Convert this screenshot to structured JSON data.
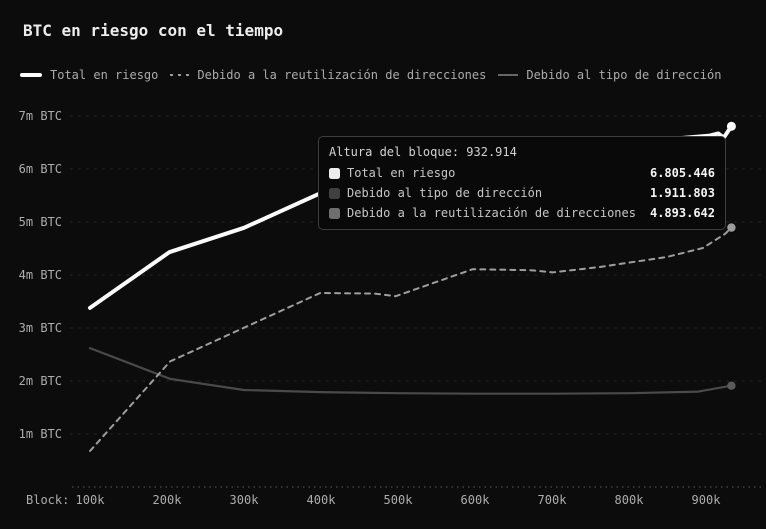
{
  "title": "BTC en riesgo con el tiempo",
  "legend": {
    "items": [
      {
        "id": "total",
        "label": "Total en riesgo",
        "marker": "thick-white-line-icon"
      },
      {
        "id": "reuse",
        "label": "Debido a la reutilización de direcciones",
        "marker": "dotted-line-icon"
      },
      {
        "id": "type",
        "label": "Debido al tipo de dirección",
        "marker": "thin-gray-line-icon"
      }
    ]
  },
  "tooltip": {
    "title": "Altura del bloque: 932.914",
    "rows": [
      {
        "label": "Total en riesgo",
        "value": "6.805.446",
        "color": "#ededed"
      },
      {
        "label": "Debido al tipo de dirección",
        "value": "1.911.803",
        "color": "#404040"
      },
      {
        "label": "Debido a la reutilización de direcciones",
        "value": "4.893.642",
        "color": "#6f6f6f"
      }
    ]
  },
  "chart_data": {
    "type": "line",
    "title": "BTC en riesgo con el tiempo",
    "xlabel": "Block",
    "ylabel": "BTC",
    "x_axis_prefix": "Block:",
    "x_tick_labels": [
      "100k",
      "200k",
      "300k",
      "400k",
      "500k",
      "600k",
      "700k",
      "800k",
      "900k"
    ],
    "x_ticks_block_k": [
      100,
      200,
      300,
      400,
      500,
      600,
      700,
      800,
      900
    ],
    "y_tick_labels": [
      "7m BTC",
      "6m BTC",
      "5m BTC",
      "4m BTC",
      "3m BTC",
      "2m BTC",
      "1m BTC"
    ],
    "y_ticks_m_btc": [
      7,
      6,
      5,
      4,
      3,
      2,
      1
    ],
    "ylim_m_btc": [
      0.5,
      7.3
    ],
    "xlim_block_k": [
      75,
      960
    ],
    "grid": "horizontal-dashed",
    "legend_position": "top-left",
    "hover_block_height": 932914,
    "series": [
      {
        "name": "Total en riesgo",
        "color": "#fbfbfb",
        "style": "solid-thick",
        "last_value_btc": 6805446,
        "points_block_k_vs_m_btc": [
          [
            100,
            3.38
          ],
          [
            203,
            4.43
          ],
          [
            300,
            4.89
          ],
          [
            400,
            5.55
          ],
          [
            500,
            5.93
          ],
          [
            600,
            6.17
          ],
          [
            700,
            6.35
          ],
          [
            800,
            6.5
          ],
          [
            905,
            6.63
          ],
          [
            916,
            6.67
          ],
          [
            923,
            6.59
          ],
          [
            933,
            6.805
          ]
        ]
      },
      {
        "name": "Debido a la reutilización de direcciones",
        "color": "#9e9e9e",
        "style": "dashed",
        "last_value_btc": 4893642,
        "points_block_k_vs_m_btc": [
          [
            100,
            0.68
          ],
          [
            204,
            2.37
          ],
          [
            399,
            3.66
          ],
          [
            470,
            3.65
          ],
          [
            497,
            3.6
          ],
          [
            597,
            4.11
          ],
          [
            672,
            4.09
          ],
          [
            701,
            4.05
          ],
          [
            762,
            4.15
          ],
          [
            849,
            4.34
          ],
          [
            896,
            4.51
          ],
          [
            925,
            4.78
          ],
          [
            933,
            4.894
          ]
        ]
      },
      {
        "name": "Debido al tipo de dirección",
        "color": "#4a4a4a",
        "style": "solid",
        "last_value_btc": 1911803,
        "points_block_k_vs_m_btc": [
          [
            100,
            2.62
          ],
          [
            204,
            2.04
          ],
          [
            300,
            1.83
          ],
          [
            399,
            1.79
          ],
          [
            500,
            1.77
          ],
          [
            600,
            1.76
          ],
          [
            700,
            1.76
          ],
          [
            800,
            1.77
          ],
          [
            890,
            1.8
          ],
          [
            933,
            1.912
          ]
        ]
      }
    ]
  }
}
